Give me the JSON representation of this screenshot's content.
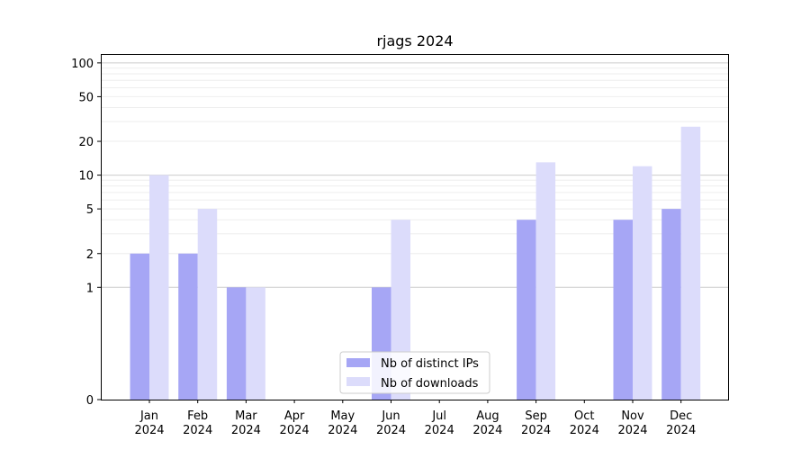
{
  "chart_data": {
    "type": "bar",
    "title": "rjags 2024",
    "xlabel": "",
    "ylabel": "",
    "yscale": "symlog",
    "ylim": [
      0,
      120
    ],
    "yticks": [
      0,
      1,
      2,
      5,
      10,
      20,
      50,
      100
    ],
    "grid": true,
    "legend_position": "lower-center",
    "categories": [
      "Jan\n2024",
      "Feb\n2024",
      "Mar\n2024",
      "Apr\n2024",
      "May\n2024",
      "Jun\n2024",
      "Jul\n2024",
      "Aug\n2024",
      "Sep\n2024",
      "Oct\n2024",
      "Nov\n2024",
      "Dec\n2024"
    ],
    "series": [
      {
        "name": "Nb of distinct IPs",
        "color": "#a6a6f5",
        "values": [
          2,
          2,
          1,
          0,
          0,
          1,
          0,
          0,
          4,
          0,
          4,
          5
        ]
      },
      {
        "name": "Nb of downloads",
        "color": "#dcdcfb",
        "values": [
          10,
          5,
          1,
          0,
          0,
          4,
          0,
          0,
          13,
          0,
          12,
          27
        ]
      }
    ]
  }
}
